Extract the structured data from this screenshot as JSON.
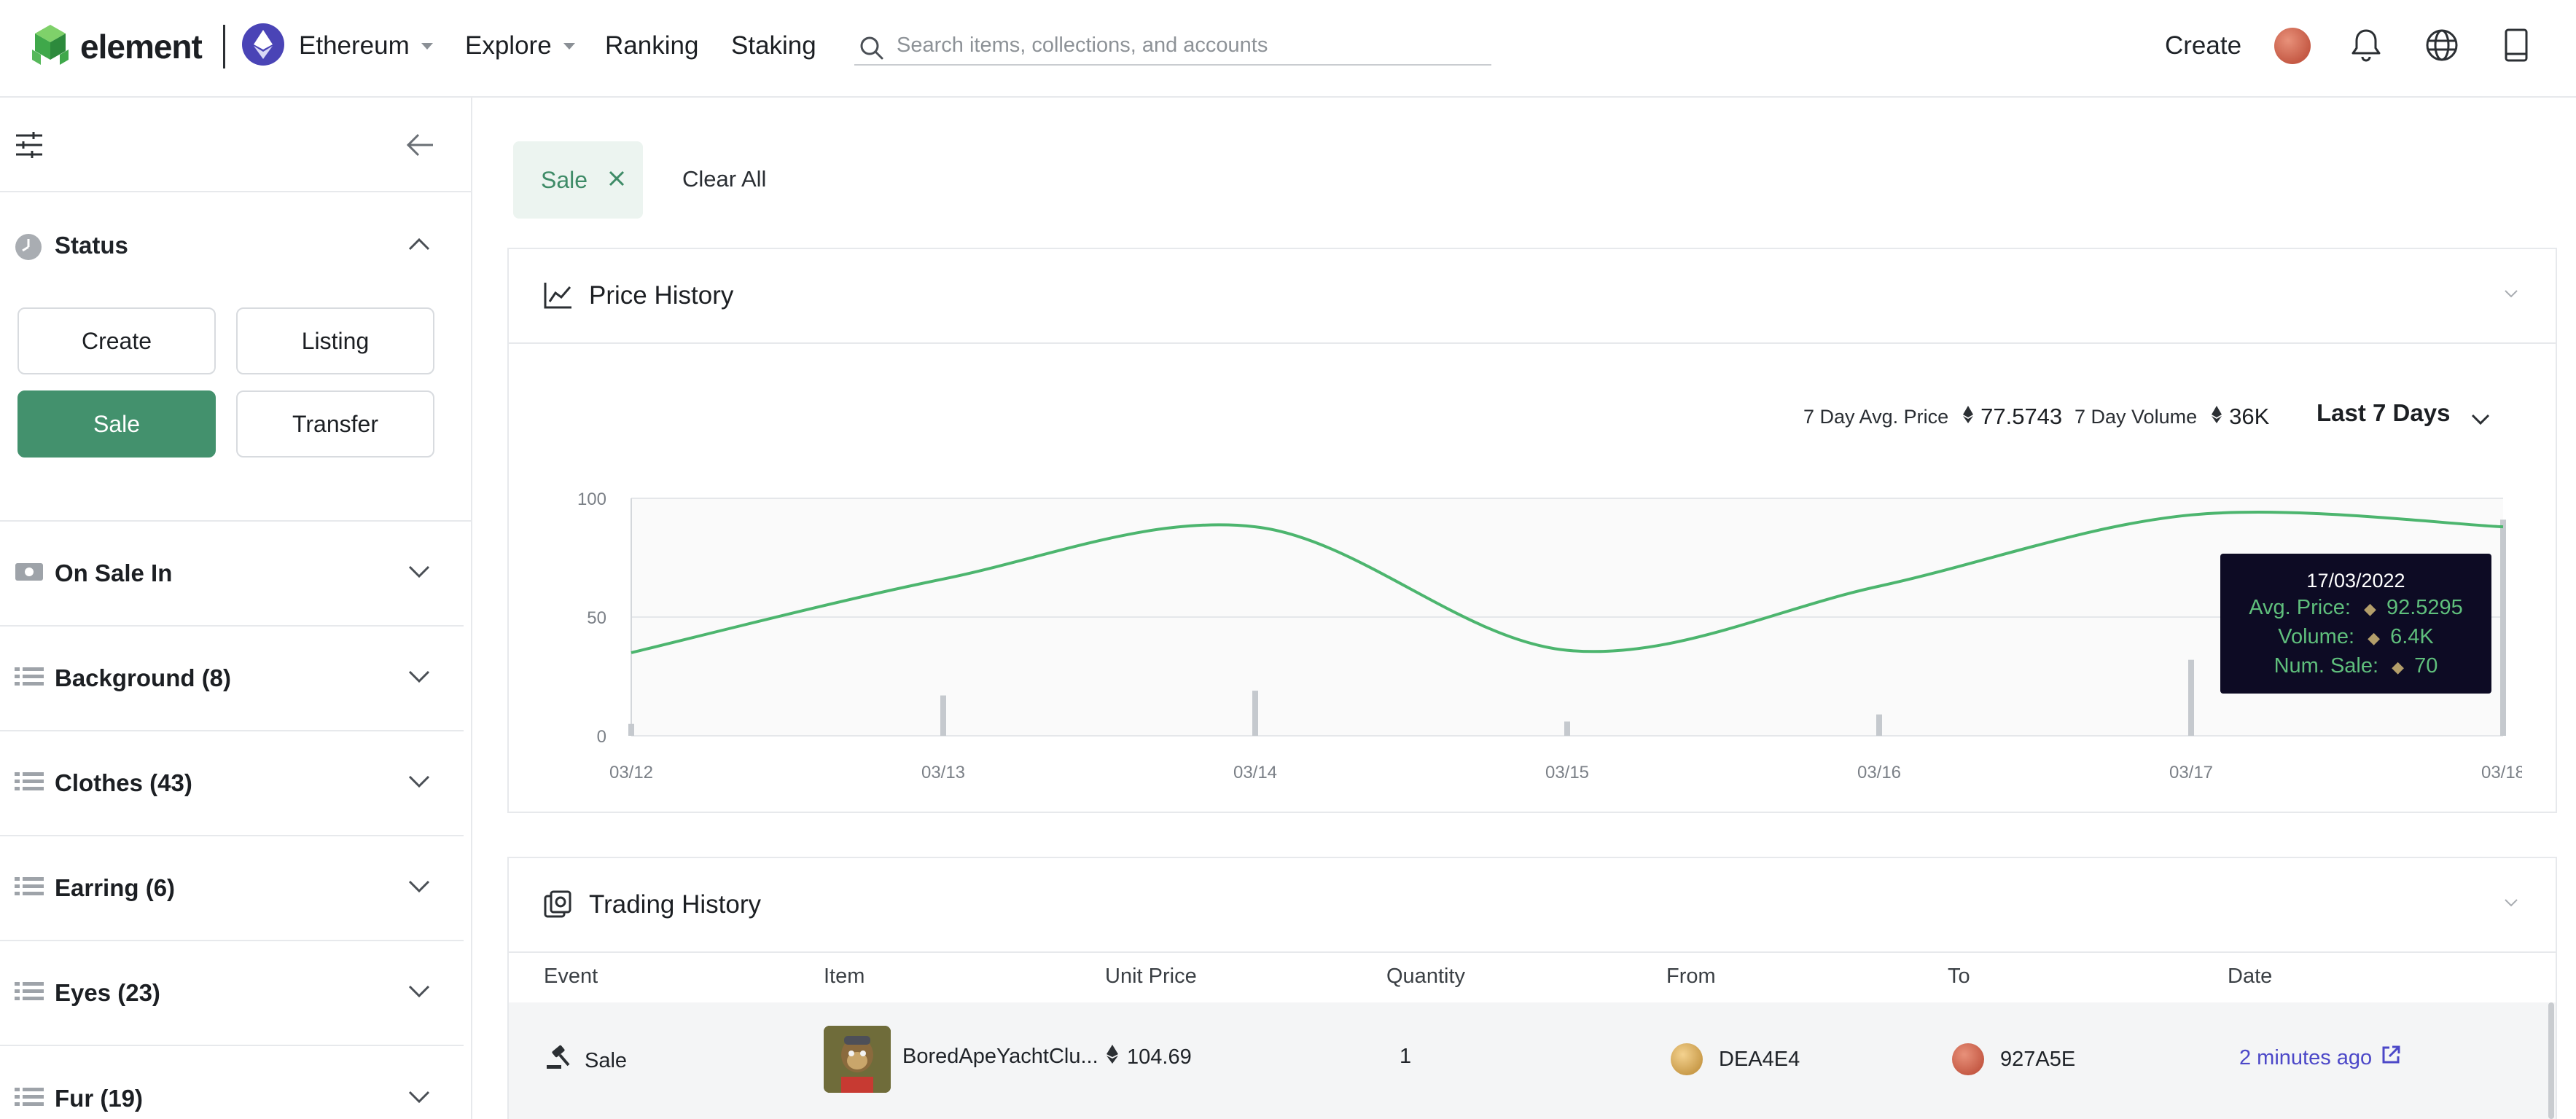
{
  "header": {
    "logo_text": "element",
    "network": "Ethereum",
    "nav": [
      "Explore",
      "Ranking",
      "Staking"
    ],
    "search_placeholder": "Search items, collections, and accounts",
    "create_label": "Create",
    "icons": [
      "avatar",
      "bell-icon",
      "globe-icon",
      "wallet-icon"
    ]
  },
  "sidebar": {
    "status_title": "Status",
    "status_buttons": [
      "Create",
      "Listing",
      "Sale",
      "Transfer"
    ],
    "active_status": "Sale",
    "sections": [
      {
        "title": "On Sale In",
        "icon": "banknote-icon"
      },
      {
        "title": "Background (8)",
        "icon": "list-icon"
      },
      {
        "title": "Clothes (43)",
        "icon": "list-icon"
      },
      {
        "title": "Earring (6)",
        "icon": "list-icon"
      },
      {
        "title": "Eyes (23)",
        "icon": "list-icon"
      },
      {
        "title": "Fur (19)",
        "icon": "list-icon"
      }
    ]
  },
  "filters": {
    "chip_label": "Sale",
    "clear_all": "Clear All"
  },
  "price_history": {
    "title": "Price History",
    "avg_label": "7 Day Avg. Price",
    "avg_value": "77.5743",
    "volume_label": "7 Day Volume",
    "volume_value": "36K",
    "range_label": "Last 7 Days",
    "tooltip": {
      "date": "17/03/2022",
      "avg_label": "Avg. Price:",
      "avg_value": "92.5295",
      "volume_label": "Volume:",
      "volume_value": "6.4K",
      "sale_label": "Num. Sale:",
      "sale_value": "70"
    }
  },
  "chart_data": {
    "type": "line",
    "x": [
      "03/12",
      "03/13",
      "03/14",
      "03/15",
      "03/16",
      "03/17",
      "03/18"
    ],
    "ylim": [
      0,
      100
    ],
    "yticks": [
      0,
      50,
      100
    ],
    "series": [
      {
        "values": [
          35,
          66,
          88,
          36,
          63,
          93,
          88
        ]
      }
    ],
    "volume_bars": [
      {
        "x": 0.0,
        "value": 5
      },
      {
        "x": 1.0,
        "value": 17
      },
      {
        "x": 2.0,
        "value": 19
      },
      {
        "x": 3.0,
        "value": 6
      },
      {
        "x": 4.0,
        "value": 9
      },
      {
        "x": 5.0,
        "value": 32
      },
      {
        "x": 6.0,
        "value": 91
      }
    ],
    "line_color": "#4cb56e",
    "bar_color": "#c5c9ce",
    "grid": true
  },
  "trading_history": {
    "title": "Trading History",
    "columns": [
      "Event",
      "Item",
      "Unit Price",
      "Quantity",
      "From",
      "To",
      "Date"
    ],
    "rows": [
      {
        "event": "Sale",
        "item": "BoredApeYachtClu...",
        "price": "104.69",
        "quantity": "1",
        "from": "DEA4E4",
        "to": "927A5E",
        "date": "2 minutes ago"
      }
    ]
  }
}
